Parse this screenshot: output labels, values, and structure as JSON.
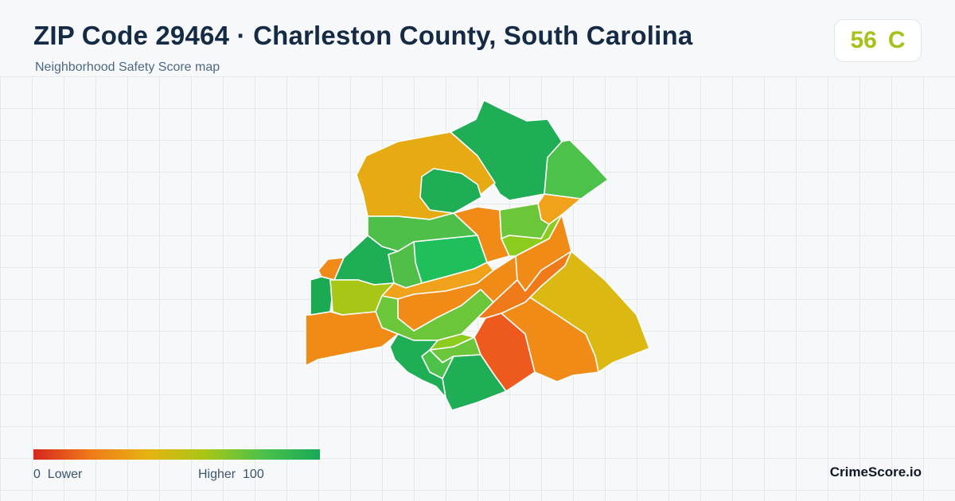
{
  "header": {
    "title": "ZIP Code 29464 · Charleston County, South Carolina",
    "subtitle": "Neighborhood Safety Score map"
  },
  "score": {
    "value": "56",
    "grade": "C",
    "color": "#a4c21a"
  },
  "legend": {
    "min_value": "0",
    "min_label": "Lower",
    "max_label": "Higher",
    "max_value": "100",
    "gradient_colors": [
      "#d7261e",
      "#f07a1a",
      "#e6b312",
      "#a8c616",
      "#4cc24a",
      "#18a858"
    ]
  },
  "map": {
    "regions": [
      {
        "name": "region-north",
        "color": "#1fae55"
      },
      {
        "name": "region-northeast",
        "color": "#4cc24a"
      },
      {
        "name": "region-northwest-large",
        "color": "#e6ab12"
      },
      {
        "name": "region-north-inner",
        "color": "#1fae55"
      },
      {
        "name": "region-center-north",
        "color": "#f18b18"
      },
      {
        "name": "region-east-north",
        "color": "#f0a21a"
      },
      {
        "name": "region-east-mid",
        "color": "#6cc63a"
      },
      {
        "name": "region-east-lower",
        "color": "#8ccc1e"
      },
      {
        "name": "region-west-green",
        "color": "#4ec04a"
      },
      {
        "name": "region-west-dark",
        "color": "#1fae55"
      },
      {
        "name": "region-center",
        "color": "#1fbf5c"
      },
      {
        "name": "region-west-strip",
        "color": "#50bf48"
      },
      {
        "name": "region-west-orange-sliver",
        "color": "#f08a18"
      },
      {
        "name": "region-far-west",
        "color": "#1aaa52"
      },
      {
        "name": "region-lime-west",
        "color": "#a8c616"
      },
      {
        "name": "region-central-orange",
        "color": "#f0a21a"
      },
      {
        "name": "region-central-orange-2",
        "color": "#f18b18"
      },
      {
        "name": "region-central-green",
        "color": "#6cc63a"
      },
      {
        "name": "region-southwest-orange",
        "color": "#f18b18"
      },
      {
        "name": "region-east-orange",
        "color": "#f18b18"
      },
      {
        "name": "region-east-orange-2",
        "color": "#f07a1a"
      },
      {
        "name": "region-southeast-gold",
        "color": "#dcb812"
      },
      {
        "name": "region-south-red",
        "color": "#ee5a1e"
      },
      {
        "name": "region-south-orange",
        "color": "#f18b18"
      },
      {
        "name": "region-south-green",
        "color": "#1fae55"
      },
      {
        "name": "region-south-small-1",
        "color": "#6cc63a"
      },
      {
        "name": "region-south-small-2",
        "color": "#4cc24a"
      },
      {
        "name": "region-south-small-3",
        "color": "#8ccc1e"
      },
      {
        "name": "region-southwest-green",
        "color": "#1fae55"
      }
    ]
  },
  "brand": {
    "name": "CrimeScore.io"
  }
}
